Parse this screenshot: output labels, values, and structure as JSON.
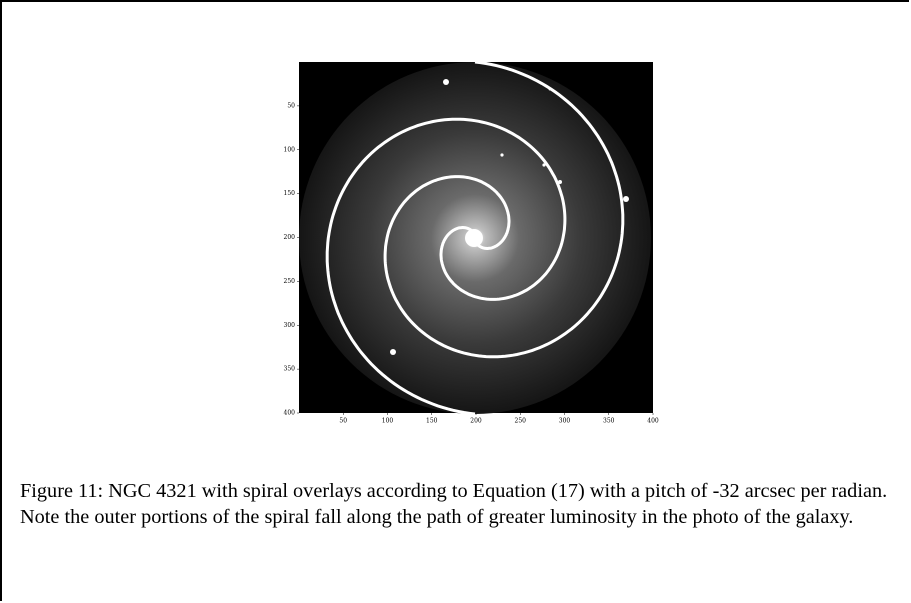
{
  "figure": {
    "xlim": [
      0,
      400
    ],
    "ylim": [
      0,
      400
    ],
    "xticks": [
      50,
      100,
      150,
      200,
      250,
      300,
      350,
      400
    ],
    "yticks": [
      50,
      100,
      150,
      200,
      250,
      300,
      350,
      400
    ],
    "caption": "Figure 11: NGC 4321 with spiral overlays according to Equation (17) with a pitch of -32 arcsec per radian. Note the outer portions of the spiral fall along the path of greater luminosity in the photo of the galaxy."
  }
}
